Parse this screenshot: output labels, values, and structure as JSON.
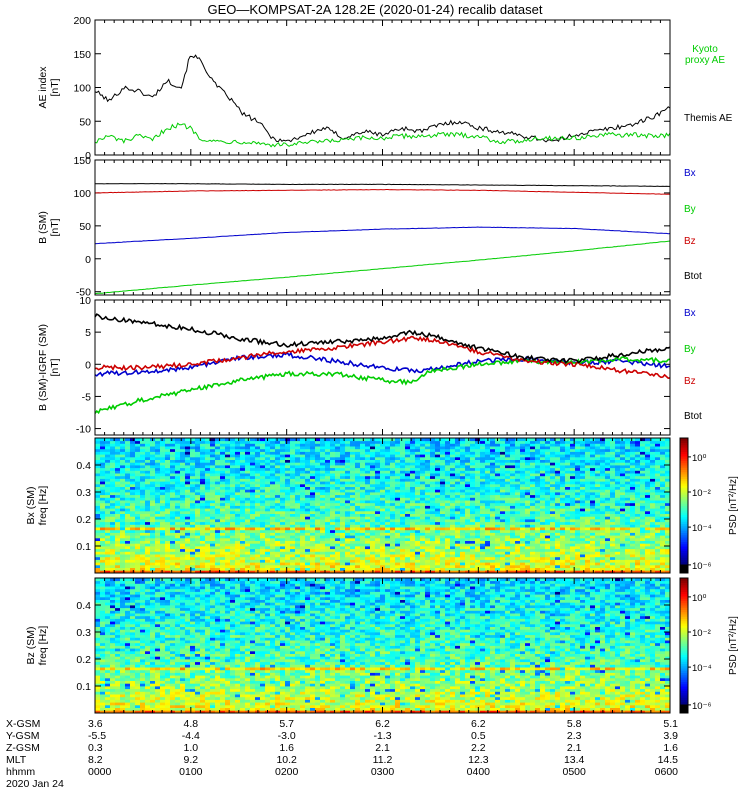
{
  "title": "GEO—KOMPSAT-2A 128.2E (2020-01-24) recalib dataset",
  "chart_data": [
    {
      "type": "line",
      "panel": "ae",
      "ylabel": [
        "AE index",
        "[nT]"
      ],
      "ylim": [
        0,
        200
      ],
      "yticks": [
        0,
        50,
        100,
        150,
        200
      ],
      "x_hours": [
        0,
        0.15,
        0.3,
        0.45,
        0.6,
        0.75,
        0.9,
        1.0,
        1.1,
        1.25,
        1.4,
        1.55,
        1.7,
        1.85,
        2.0,
        2.2,
        2.4,
        2.6,
        2.8,
        3.0,
        3.2,
        3.4,
        3.6,
        3.8,
        4.0,
        4.2,
        4.4,
        4.6,
        4.8,
        5.0,
        5.2,
        5.4,
        5.6,
        5.8,
        6.0
      ],
      "series": [
        {
          "name": "Themis AE",
          "color": "#000000",
          "values": [
            95,
            80,
            100,
            95,
            85,
            110,
            100,
            150,
            140,
            105,
            85,
            60,
            50,
            25,
            20,
            30,
            40,
            25,
            35,
            30,
            40,
            35,
            45,
            50,
            40,
            35,
            30,
            25,
            20,
            30,
            35,
            40,
            45,
            55,
            70
          ]
        },
        {
          "name": "Kyoto proxy AE",
          "color": "#00cc00",
          "values": [
            20,
            28,
            20,
            28,
            22,
            40,
            45,
            40,
            25,
            20,
            20,
            20,
            18,
            15,
            15,
            18,
            20,
            22,
            25,
            25,
            28,
            28,
            30,
            30,
            28,
            20,
            20,
            25,
            25,
            25,
            28,
            30,
            30,
            28,
            30
          ]
        }
      ],
      "legend": [
        "Kyoto proxy AE",
        "Themis AE"
      ]
    },
    {
      "type": "line",
      "panel": "b_sm",
      "ylabel": [
        "B (SM)",
        "[nT]"
      ],
      "ylim": [
        -55,
        150
      ],
      "yticks": [
        -50,
        0,
        50,
        100,
        150
      ],
      "x_hours": [
        0,
        1,
        2,
        3,
        4,
        5,
        6
      ],
      "series": [
        {
          "name": "Bx",
          "color": "#0000cc",
          "values": [
            23,
            31,
            40,
            45,
            48,
            46,
            38
          ]
        },
        {
          "name": "By",
          "color": "#00cc00",
          "values": [
            -53,
            -40,
            -28,
            -15,
            -2,
            12,
            27
          ]
        },
        {
          "name": "Bz",
          "color": "#cc0000",
          "values": [
            100,
            103,
            104,
            105,
            104,
            101,
            98
          ]
        },
        {
          "name": "Btot",
          "color": "#000000",
          "values": [
            114,
            114,
            113,
            113,
            112,
            111,
            110
          ]
        }
      ],
      "legend": [
        "Bx",
        "By",
        "Bz",
        "Btot"
      ]
    },
    {
      "type": "line",
      "panel": "b_minus_igrf",
      "ylabel": [
        "B (SM)-IGRF (SM)",
        "[nT]"
      ],
      "ylim": [
        -11,
        10
      ],
      "yticks": [
        -10,
        -5,
        0,
        5,
        10
      ],
      "x_hours": [
        0,
        0.5,
        1,
        1.5,
        2,
        2.5,
        3,
        3.3,
        3.5,
        4,
        4.5,
        5,
        5.5,
        6
      ],
      "series": [
        {
          "name": "Bx",
          "color": "#0000cc",
          "values": [
            -1.5,
            -1.2,
            -0.5,
            1.0,
            1.5,
            0.5,
            -0.5,
            -1.0,
            -0.8,
            0.5,
            0.8,
            0.2,
            0.5,
            -0.3
          ]
        },
        {
          "name": "By",
          "color": "#00cc00",
          "values": [
            -7.5,
            -5.5,
            -4.0,
            -2.5,
            -1.5,
            -1.5,
            -2.5,
            -2.8,
            -1.0,
            0.0,
            0.5,
            0.3,
            0.8,
            0.5
          ]
        },
        {
          "name": "Bz",
          "color": "#cc0000",
          "values": [
            -0.5,
            -0.5,
            0.0,
            1.0,
            2.0,
            2.5,
            3.5,
            4.0,
            3.8,
            2.0,
            0.5,
            0.0,
            -1.0,
            -2.0
          ]
        },
        {
          "name": "Btot",
          "color": "#000000",
          "values": [
            7.5,
            6.5,
            5.5,
            4.0,
            3.0,
            3.5,
            4.0,
            5.0,
            4.5,
            2.5,
            1.0,
            0.5,
            1.5,
            2.5
          ]
        }
      ],
      "legend": [
        "Bx",
        "By",
        "Bz",
        "Btot"
      ]
    },
    {
      "type": "heatmap",
      "panel": "bx_spec",
      "ylabel": [
        "Bx (SM)",
        "freq [Hz]"
      ],
      "ylim": [
        0,
        0.5
      ],
      "yticks": [
        0.1,
        0.2,
        0.3,
        0.4
      ],
      "colorbar_label": "PSD [nT²/Hz]",
      "colorbar_ticks": [
        "10⁰",
        "10⁻²",
        "10⁻⁴",
        "10⁻⁶"
      ]
    },
    {
      "type": "heatmap",
      "panel": "bz_spec",
      "ylabel": [
        "Bz (SM)",
        "freq [Hz]"
      ],
      "ylim": [
        0,
        0.5
      ],
      "yticks": [
        0.1,
        0.2,
        0.3,
        0.4
      ],
      "colorbar_label": "PSD [nT²/Hz]",
      "colorbar_ticks": [
        "10⁰",
        "10⁻²",
        "10⁻⁴",
        "10⁻⁶"
      ]
    }
  ],
  "axis_table": {
    "row_labels": [
      "X-GSM",
      "Y-GSM",
      "Z-GSM",
      "MLT",
      "hhmm"
    ],
    "date": "2020 Jan 24",
    "columns": [
      [
        "3.6",
        "-5.5",
        "0.3",
        "8.2",
        "0000"
      ],
      [
        "4.8",
        "-4.4",
        "1.0",
        "9.2",
        "0100"
      ],
      [
        "5.7",
        "-3.0",
        "1.6",
        "10.2",
        "0200"
      ],
      [
        "6.2",
        "-1.3",
        "2.1",
        "11.2",
        "0300"
      ],
      [
        "6.2",
        "0.5",
        "2.2",
        "12.3",
        "0400"
      ],
      [
        "5.8",
        "2.3",
        "2.1",
        "13.4",
        "0500"
      ],
      [
        "5.1",
        "3.9",
        "1.6",
        "14.5",
        "0600"
      ]
    ]
  }
}
